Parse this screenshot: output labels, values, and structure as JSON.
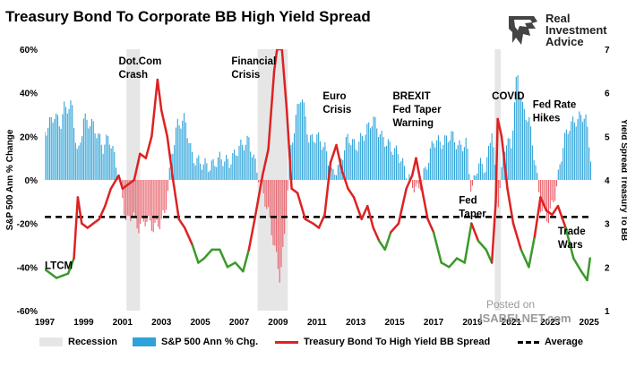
{
  "title": "Treasury Bond To Corporate BB High Yield Spread",
  "brand": {
    "line1": "Real",
    "line2": "Investment",
    "line3": "Advice"
  },
  "watermark": {
    "line1": "Posted on",
    "line2": "ISABELNET.com"
  },
  "colors": {
    "bars_pos": "#2ea3d9",
    "bars_neg": "#e8606a",
    "spread_high": "#dd2222",
    "spread_low": "#3a9a2a",
    "recession": "#e6e6e6",
    "average": "#000000"
  },
  "legend": [
    {
      "label": "Recession",
      "kind": "recession"
    },
    {
      "label": "S&P 500 Ann % Chg.",
      "kind": "bars"
    },
    {
      "label": "Treasury Bond To High Yield BB Spread",
      "kind": "line"
    },
    {
      "label": "Average",
      "kind": "dashed"
    }
  ],
  "chart_data": {
    "type": "bar+line",
    "title": "Treasury Bond To Corporate BB High Yield Spread",
    "x_ticks": [
      "1997",
      "1999",
      "2001",
      "2003",
      "2005",
      "2007",
      "2009",
      "2011",
      "2013",
      "2015",
      "2017",
      "2019",
      "2021",
      "2023",
      "2025"
    ],
    "xlim": [
      1997,
      2025.2
    ],
    "y_left": {
      "label": "S&P 500 Ann % Change",
      "ticks": [
        "60%",
        "40%",
        "20%",
        "0%",
        "-20%",
        "-40%",
        "-60%"
      ],
      "range": [
        -60,
        60
      ]
    },
    "y_right": {
      "label": "Yield Spread Treasury To BB",
      "ticks": [
        "1",
        "2",
        "3",
        "4",
        "5",
        "6",
        "7"
      ],
      "range": [
        1,
        7
      ]
    },
    "recessions": [
      [
        2001.2,
        2001.9
      ],
      [
        2007.95,
        2009.5
      ],
      [
        2020.15,
        2020.45
      ]
    ],
    "average_spread": 3.15,
    "sp500_ann_pct_chg": [
      [
        1997.0,
        22
      ],
      [
        1997.5,
        30
      ],
      [
        1997.8,
        25
      ],
      [
        1998.0,
        33
      ],
      [
        1998.4,
        34
      ],
      [
        1998.7,
        10
      ],
      [
        1999.0,
        28
      ],
      [
        1999.5,
        25
      ],
      [
        2000.0,
        15
      ],
      [
        2000.3,
        20
      ],
      [
        2000.6,
        10
      ],
      [
        2000.9,
        -2
      ],
      [
        2001.2,
        -20
      ],
      [
        2001.5,
        -15
      ],
      [
        2001.8,
        -22
      ],
      [
        2002.2,
        -18
      ],
      [
        2002.6,
        -22
      ],
      [
        2002.9,
        -20
      ],
      [
        2003.2,
        -15
      ],
      [
        2003.5,
        10
      ],
      [
        2003.8,
        25
      ],
      [
        2004.2,
        28
      ],
      [
        2004.6,
        10
      ],
      [
        2005.0,
        8
      ],
      [
        2005.5,
        6
      ],
      [
        2006.0,
        10
      ],
      [
        2006.5,
        8
      ],
      [
        2007.0,
        15
      ],
      [
        2007.5,
        18
      ],
      [
        2007.9,
        5
      ],
      [
        2008.2,
        -5
      ],
      [
        2008.5,
        -15
      ],
      [
        2008.8,
        -30
      ],
      [
        2009.1,
        -45
      ],
      [
        2009.3,
        -30
      ],
      [
        2009.6,
        10
      ],
      [
        2009.9,
        28
      ],
      [
        2010.2,
        40
      ],
      [
        2010.6,
        18
      ],
      [
        2011.0,
        20
      ],
      [
        2011.4,
        15
      ],
      [
        2011.8,
        2
      ],
      [
        2012.2,
        8
      ],
      [
        2012.6,
        20
      ],
      [
        2013.0,
        15
      ],
      [
        2013.5,
        22
      ],
      [
        2013.9,
        28
      ],
      [
        2014.3,
        20
      ],
      [
        2014.8,
        15
      ],
      [
        2015.2,
        12
      ],
      [
        2015.6,
        3
      ],
      [
        2015.9,
        -2
      ],
      [
        2016.2,
        -5
      ],
      [
        2016.6,
        5
      ],
      [
        2017.0,
        18
      ],
      [
        2017.5,
        17
      ],
      [
        2017.9,
        21
      ],
      [
        2018.3,
        15
      ],
      [
        2018.7,
        17
      ],
      [
        2018.95,
        -6
      ],
      [
        2019.3,
        8
      ],
      [
        2019.7,
        5
      ],
      [
        2020.0,
        24
      ],
      [
        2020.3,
        -12
      ],
      [
        2020.7,
        18
      ],
      [
        2021.0,
        16
      ],
      [
        2021.3,
        50
      ],
      [
        2021.6,
        32
      ],
      [
        2021.9,
        28
      ],
      [
        2022.2,
        10
      ],
      [
        2022.5,
        -12
      ],
      [
        2022.9,
        -18
      ],
      [
        2023.3,
        -5
      ],
      [
        2023.7,
        18
      ],
      [
        2024.0,
        25
      ],
      [
        2024.4,
        28
      ],
      [
        2024.8,
        30
      ],
      [
        2025.1,
        10
      ]
    ],
    "spread": [
      [
        1997.0,
        1.95
      ],
      [
        1997.3,
        1.85
      ],
      [
        1997.6,
        1.75
      ],
      [
        1997.9,
        1.8
      ],
      [
        1998.2,
        1.85
      ],
      [
        1998.5,
        2.2
      ],
      [
        1998.7,
        3.6
      ],
      [
        1998.9,
        3.0
      ],
      [
        1999.2,
        2.9
      ],
      [
        1999.5,
        3.0
      ],
      [
        1999.8,
        3.1
      ],
      [
        2000.1,
        3.4
      ],
      [
        2000.4,
        3.8
      ],
      [
        2000.8,
        4.1
      ],
      [
        2001.0,
        3.8
      ],
      [
        2001.3,
        3.9
      ],
      [
        2001.6,
        4.0
      ],
      [
        2001.9,
        4.6
      ],
      [
        2002.2,
        4.5
      ],
      [
        2002.5,
        5.0
      ],
      [
        2002.8,
        6.3
      ],
      [
        2003.0,
        5.6
      ],
      [
        2003.3,
        5.0
      ],
      [
        2003.6,
        4.0
      ],
      [
        2003.9,
        3.1
      ],
      [
        2004.2,
        2.9
      ],
      [
        2004.6,
        2.5
      ],
      [
        2004.9,
        2.1
      ],
      [
        2005.2,
        2.2
      ],
      [
        2005.6,
        2.4
      ],
      [
        2006.0,
        2.4
      ],
      [
        2006.4,
        2.0
      ],
      [
        2006.8,
        2.1
      ],
      [
        2007.2,
        1.9
      ],
      [
        2007.5,
        2.4
      ],
      [
        2007.8,
        3.1
      ],
      [
        2008.2,
        4.1
      ],
      [
        2008.5,
        4.7
      ],
      [
        2008.8,
        6.5
      ],
      [
        2008.95,
        7.0
      ],
      [
        2009.2,
        7.0
      ],
      [
        2009.45,
        5.6
      ],
      [
        2009.7,
        3.8
      ],
      [
        2010.0,
        3.7
      ],
      [
        2010.4,
        3.1
      ],
      [
        2010.8,
        3.0
      ],
      [
        2011.1,
        2.9
      ],
      [
        2011.4,
        3.2
      ],
      [
        2011.7,
        4.4
      ],
      [
        2012.0,
        4.8
      ],
      [
        2012.3,
        4.2
      ],
      [
        2012.6,
        3.8
      ],
      [
        2012.9,
        3.6
      ],
      [
        2013.3,
        3.1
      ],
      [
        2013.6,
        3.4
      ],
      [
        2013.9,
        2.9
      ],
      [
        2014.2,
        2.6
      ],
      [
        2014.5,
        2.4
      ],
      [
        2014.8,
        2.8
      ],
      [
        2015.2,
        3.0
      ],
      [
        2015.6,
        3.8
      ],
      [
        2015.9,
        4.1
      ],
      [
        2016.1,
        4.5
      ],
      [
        2016.4,
        3.8
      ],
      [
        2016.7,
        3.1
      ],
      [
        2017.0,
        2.8
      ],
      [
        2017.4,
        2.1
      ],
      [
        2017.8,
        2.0
      ],
      [
        2018.2,
        2.2
      ],
      [
        2018.6,
        2.1
      ],
      [
        2018.95,
        3.0
      ],
      [
        2019.3,
        2.6
      ],
      [
        2019.7,
        2.4
      ],
      [
        2020.0,
        2.1
      ],
      [
        2020.2,
        3.5
      ],
      [
        2020.3,
        5.4
      ],
      [
        2020.5,
        5.0
      ],
      [
        2020.8,
        3.8
      ],
      [
        2021.1,
        3.0
      ],
      [
        2021.5,
        2.4
      ],
      [
        2021.9,
        2.0
      ],
      [
        2022.2,
        2.7
      ],
      [
        2022.5,
        3.6
      ],
      [
        2022.8,
        3.3
      ],
      [
        2023.1,
        3.2
      ],
      [
        2023.4,
        3.4
      ],
      [
        2023.8,
        2.9
      ],
      [
        2024.2,
        2.2
      ],
      [
        2024.6,
        1.9
      ],
      [
        2024.9,
        1.7
      ],
      [
        2025.05,
        2.2
      ]
    ],
    "annotations": [
      {
        "text": "Dot.Com\nCrash",
        "x": 2000.8,
        "y": 60
      },
      {
        "text": "Financial\nCrisis",
        "x": 2006.6,
        "y": 60
      },
      {
        "text": "Euro\nCrisis",
        "x": 2011.3,
        "y": 44
      },
      {
        "text": "BREXIT\nFed Taper\nWarning",
        "x": 2014.9,
        "y": 44
      },
      {
        "text": "COVID",
        "x": 2020.0,
        "y": 44
      },
      {
        "text": "Fed Rate\nHikes",
        "x": 2022.1,
        "y": 40
      },
      {
        "text": "Fed\nTaper",
        "x": 2018.3,
        "y": -4
      },
      {
        "text": "Trade\nWars",
        "x": 2023.4,
        "y": -18
      },
      {
        "text": "LTCM",
        "x": 1997.0,
        "y": -34
      }
    ]
  }
}
